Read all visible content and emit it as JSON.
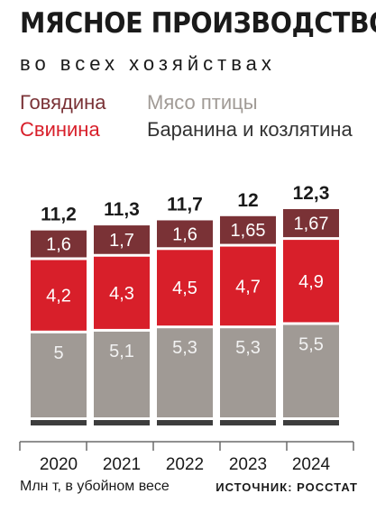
{
  "title": "МЯСНОЕ ПРОИЗВОДСТВО",
  "subtitle": "во всех хозяйствах",
  "note": "Млн т, в убойном весе",
  "source": "ИСТОЧНИК: РОССТАТ",
  "colors": {
    "beef": "#7a3236",
    "pork": "#d81f2a",
    "poultry": "#a09a95",
    "lamb": "#3d3d3d",
    "beef_text": "#7a3236",
    "pork_text": "#d81f2a",
    "poultry_text": "#a09a95",
    "lamb_text": "#333333"
  },
  "chart_data": {
    "type": "bar",
    "stacked": true,
    "categories": [
      "2020",
      "2021",
      "2022",
      "2023",
      "2024"
    ],
    "totals": [
      "11,2",
      "11,3",
      "11,7",
      "12",
      "12,3"
    ],
    "series": [
      {
        "key": "lamb",
        "name": "Баранина и козлятина",
        "values": [
          0.2,
          0.2,
          0.2,
          0.2,
          0.2
        ],
        "labels": [
          "0,2",
          "0,2",
          "0,2",
          "0,2",
          "0,2"
        ]
      },
      {
        "key": "poultry",
        "name": "Мясо птицы",
        "values": [
          5,
          5.1,
          5.3,
          5.3,
          5.5
        ],
        "labels": [
          "5",
          "5,1",
          "5,3",
          "5,3",
          "5,5"
        ]
      },
      {
        "key": "pork",
        "name": "Свинина",
        "values": [
          4.2,
          4.3,
          4.5,
          4.7,
          4.9
        ],
        "labels": [
          "4,2",
          "4,3",
          "4,5",
          "4,7",
          "4,9"
        ]
      },
      {
        "key": "beef",
        "name": "Говядина",
        "values": [
          1.6,
          1.7,
          1.6,
          1.65,
          1.67
        ],
        "labels": [
          "1,6",
          "1,7",
          "1,6",
          "1,65",
          "1,67"
        ]
      }
    ]
  }
}
